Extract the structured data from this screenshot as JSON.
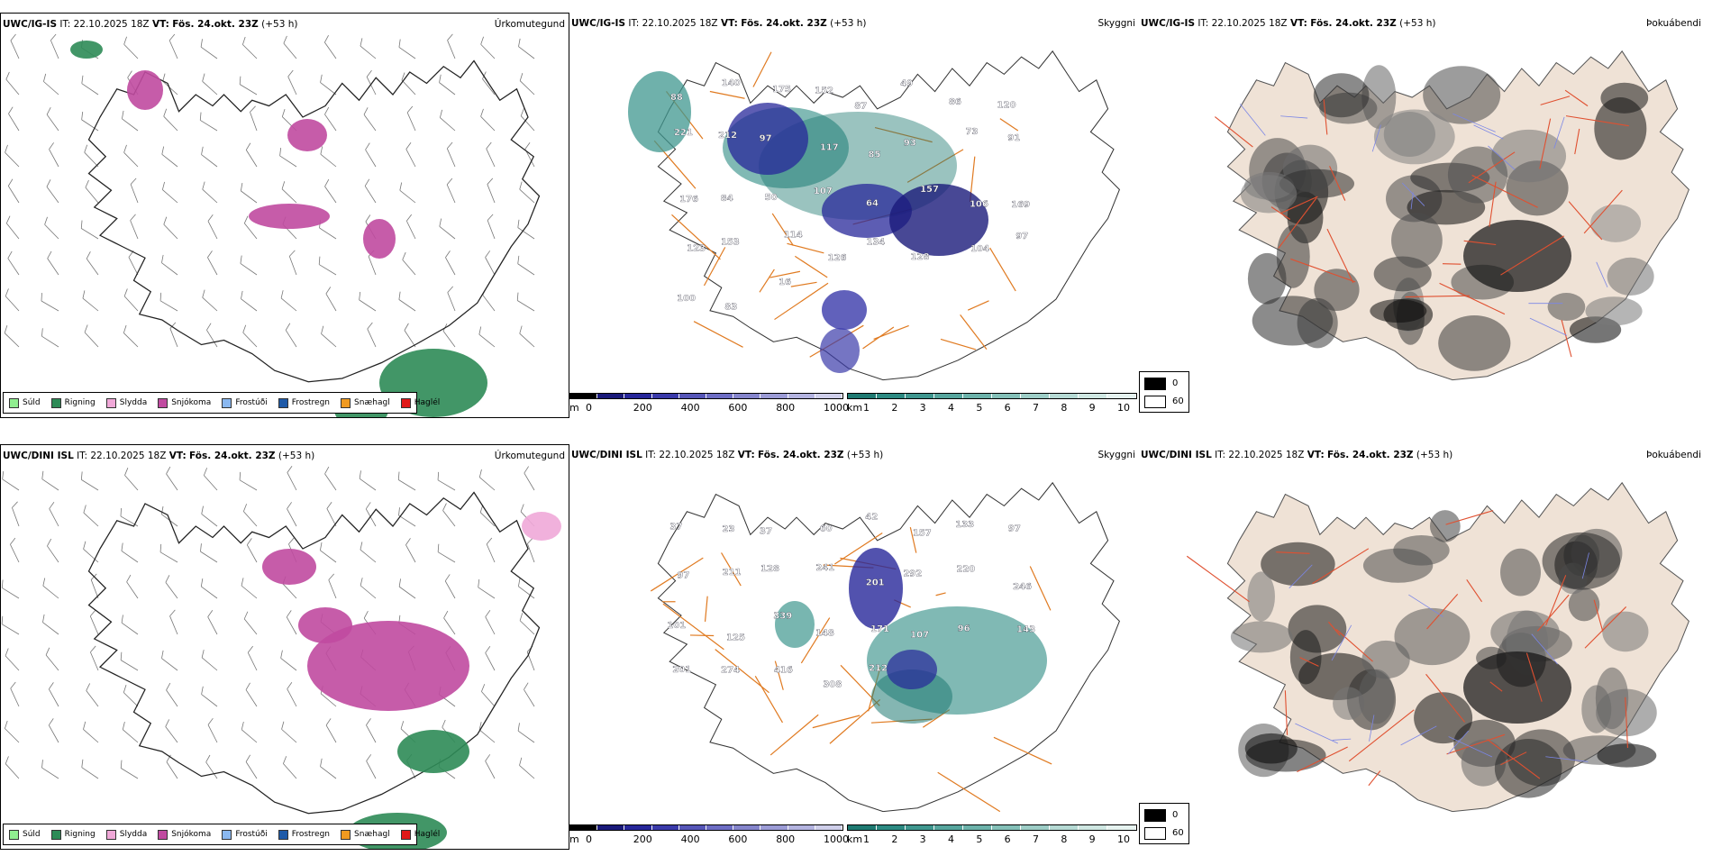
{
  "colors": {
    "suld": "#90ee90",
    "rigning": "#2e8b57",
    "slydda": "#f0a8d8",
    "snjokoma": "#c04aa0",
    "frostudi": "#8ab8f0",
    "frostregn": "#1e5aa8",
    "snaehagl": "#f09a20",
    "haglel": "#e01818",
    "road": "#e07a20",
    "fog_land": "#efe2d6",
    "fog_road": "#e05030"
  },
  "rows": [
    {
      "model": "UWC/IG-IS",
      "it_label": "IT:",
      "it_value": "22.10.2025 18Z",
      "vt_label": "VT:",
      "vt_value": "Fös. 24.okt. 23Z",
      "lead": "(+53 h)",
      "titles": {
        "precip": "Úrkomutegund",
        "cloud": "Skyggni",
        "fog": "Þokuábendi"
      },
      "cloud_labels": [
        "88",
        "140",
        "175",
        "152",
        "87",
        "49",
        "86",
        "120",
        "221",
        "212",
        "97",
        "117",
        "85",
        "93",
        "73",
        "91",
        "176",
        "84",
        "50",
        "107",
        "64",
        "157",
        "106",
        "169",
        "123",
        "153",
        "114",
        "126",
        "134",
        "128",
        "104",
        "97",
        "100",
        "83",
        "16"
      ]
    },
    {
      "model": "UWC/DINI ISL",
      "it_label": "IT:",
      "it_value": "22.10.2025 18Z",
      "vt_label": "VT:",
      "vt_value": "Fös. 24.okt. 23Z",
      "lead": "(+53 h)",
      "titles": {
        "precip": "Úrkomutegund",
        "cloud": "Skyggni",
        "fog": "Þokuábendi"
      },
      "cloud_labels": [
        "37",
        "23",
        "37",
        "60",
        "42",
        "157",
        "133",
        "97",
        "97",
        "211",
        "128",
        "241",
        "201",
        "292",
        "220",
        "246",
        "101",
        "125",
        "339",
        "148",
        "171",
        "107",
        "96",
        "143",
        "201",
        "274",
        "416",
        "308",
        "212"
      ]
    }
  ],
  "precip_legend": [
    {
      "key": "suld",
      "label": "Súld"
    },
    {
      "key": "rigning",
      "label": "Rigning"
    },
    {
      "key": "slydda",
      "label": "Slydda"
    },
    {
      "key": "snjokoma",
      "label": "Snjókoma"
    },
    {
      "key": "frostudi",
      "label": "Frostúði"
    },
    {
      "key": "frostregn",
      "label": "Frostregn"
    },
    {
      "key": "snaehagl",
      "label": "Snæhagl"
    },
    {
      "key": "haglel",
      "label": "Haglél"
    }
  ],
  "cloud_base_bar": {
    "unit": "m",
    "ticks": [
      "0",
      "200",
      "400",
      "600",
      "800",
      "1000"
    ],
    "colors": [
      "#000000",
      "#1a1a7a",
      "#27279a",
      "#3a3aaa",
      "#5656b8",
      "#6d6dc4",
      "#8585cc",
      "#9c9cd6",
      "#b4b4e0",
      "#cfcfea"
    ]
  },
  "visibility_bar": {
    "unit": "km",
    "ticks": [
      "1",
      "2",
      "3",
      "4",
      "5",
      "6",
      "7",
      "8",
      "9",
      "10"
    ],
    "colors": [
      "#1f7a72",
      "#2c8a82",
      "#3f978f",
      "#56a59d",
      "#6cb2aa",
      "#84c0b8",
      "#9dcdc6",
      "#b6dad4",
      "#cfe7e2",
      "#e6f3f0"
    ]
  },
  "fog_legend": [
    {
      "label": "0",
      "color": "#000000"
    },
    {
      "label": "60",
      "color": "#ffffff"
    }
  ]
}
